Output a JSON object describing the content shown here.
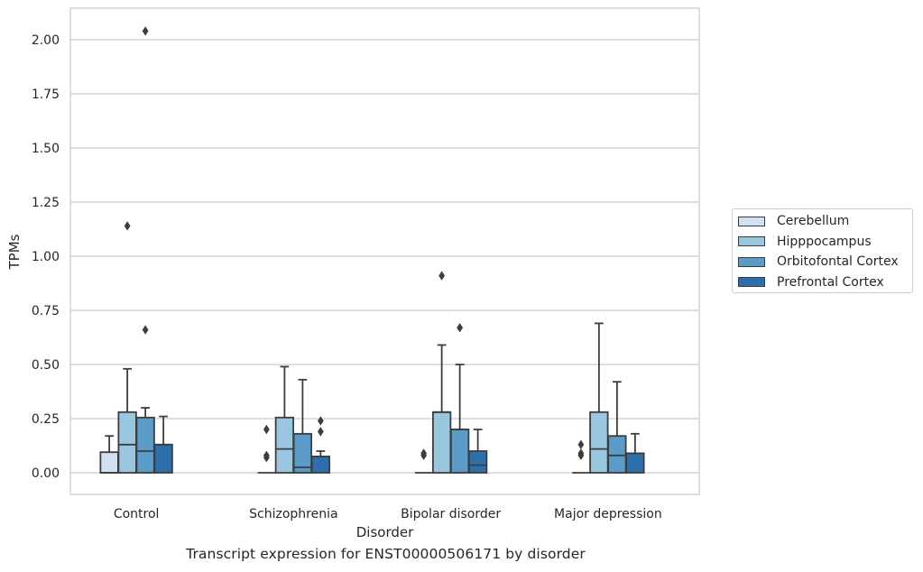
{
  "chart_data": {
    "type": "box",
    "title": "",
    "caption": "Transcript expression for ENST00000506171 by disorder",
    "xlabel": "Disorder",
    "ylabel": "TPMs",
    "ylim": [
      -0.1,
      2.15
    ],
    "yticks": [
      "0.00",
      "0.25",
      "0.50",
      "0.75",
      "1.00",
      "1.25",
      "1.50",
      "1.75",
      "2.00"
    ],
    "ytick_values": [
      0,
      0.25,
      0.5,
      0.75,
      1.0,
      1.25,
      1.5,
      1.75,
      2.0
    ],
    "grid": "horizontal",
    "legend_position": "right",
    "categories": [
      "Control",
      "Schizophrenia",
      "Bipolar disorder",
      "Major depression"
    ],
    "series": [
      {
        "name": "Cerebellum",
        "color": "#d1e1f1",
        "boxes": [
          {
            "whislo": 0,
            "q1": 0,
            "med": 0,
            "q3": 0.095,
            "whishi": 0.17,
            "fliers": []
          },
          {
            "whislo": 0,
            "q1": 0,
            "med": 0,
            "q3": 0,
            "whishi": 0,
            "fliers": [
              0.07,
              0.08,
              0.2
            ]
          },
          {
            "whislo": 0,
            "q1": 0,
            "med": 0,
            "q3": 0,
            "whishi": 0,
            "fliers": [
              0.08,
              0.09
            ]
          },
          {
            "whislo": 0,
            "q1": 0,
            "med": 0,
            "q3": 0,
            "whishi": 0,
            "fliers": [
              0.08,
              0.09,
              0.13
            ]
          }
        ]
      },
      {
        "name": "Hipppocampus",
        "color": "#9ac7e0",
        "boxes": [
          {
            "whislo": 0,
            "q1": 0,
            "med": 0.13,
            "q3": 0.28,
            "whishi": 0.48,
            "fliers": [
              1.14
            ]
          },
          {
            "whislo": 0,
            "q1": 0,
            "med": 0.11,
            "q3": 0.255,
            "whishi": 0.49,
            "fliers": []
          },
          {
            "whislo": 0,
            "q1": 0,
            "med": 0.28,
            "q3": 0.28,
            "whishi": 0.59,
            "fliers": [
              0.91
            ]
          },
          {
            "whislo": 0,
            "q1": 0,
            "med": 0.11,
            "q3": 0.28,
            "whishi": 0.69,
            "fliers": []
          }
        ]
      },
      {
        "name": "Orbitofontal Cortex",
        "color": "#5a9bc7",
        "boxes": [
          {
            "whislo": 0,
            "q1": 0,
            "med": 0.1,
            "q3": 0.255,
            "whishi": 0.3,
            "fliers": [
              0.66,
              2.04
            ]
          },
          {
            "whislo": 0,
            "q1": 0,
            "med": 0.025,
            "q3": 0.18,
            "whishi": 0.43,
            "fliers": []
          },
          {
            "whislo": 0,
            "q1": 0,
            "med": 0.2,
            "q3": 0.2,
            "whishi": 0.5,
            "fliers": [
              0.67
            ]
          },
          {
            "whislo": 0,
            "q1": 0,
            "med": 0.08,
            "q3": 0.17,
            "whishi": 0.42,
            "fliers": []
          }
        ]
      },
      {
        "name": "Prefrontal Cortex",
        "color": "#2d6fad",
        "boxes": [
          {
            "whislo": 0,
            "q1": 0,
            "med": 0.13,
            "q3": 0.13,
            "whishi": 0.26,
            "fliers": []
          },
          {
            "whislo": 0,
            "q1": 0,
            "med": 0.075,
            "q3": 0.075,
            "whishi": 0.1,
            "fliers": [
              0.19,
              0.24
            ]
          },
          {
            "whislo": 0,
            "q1": 0,
            "med": 0.035,
            "q3": 0.1,
            "whishi": 0.2,
            "fliers": []
          },
          {
            "whislo": 0,
            "q1": 0,
            "med": 0.09,
            "q3": 0.09,
            "whishi": 0.18,
            "fliers": []
          }
        ]
      }
    ]
  }
}
